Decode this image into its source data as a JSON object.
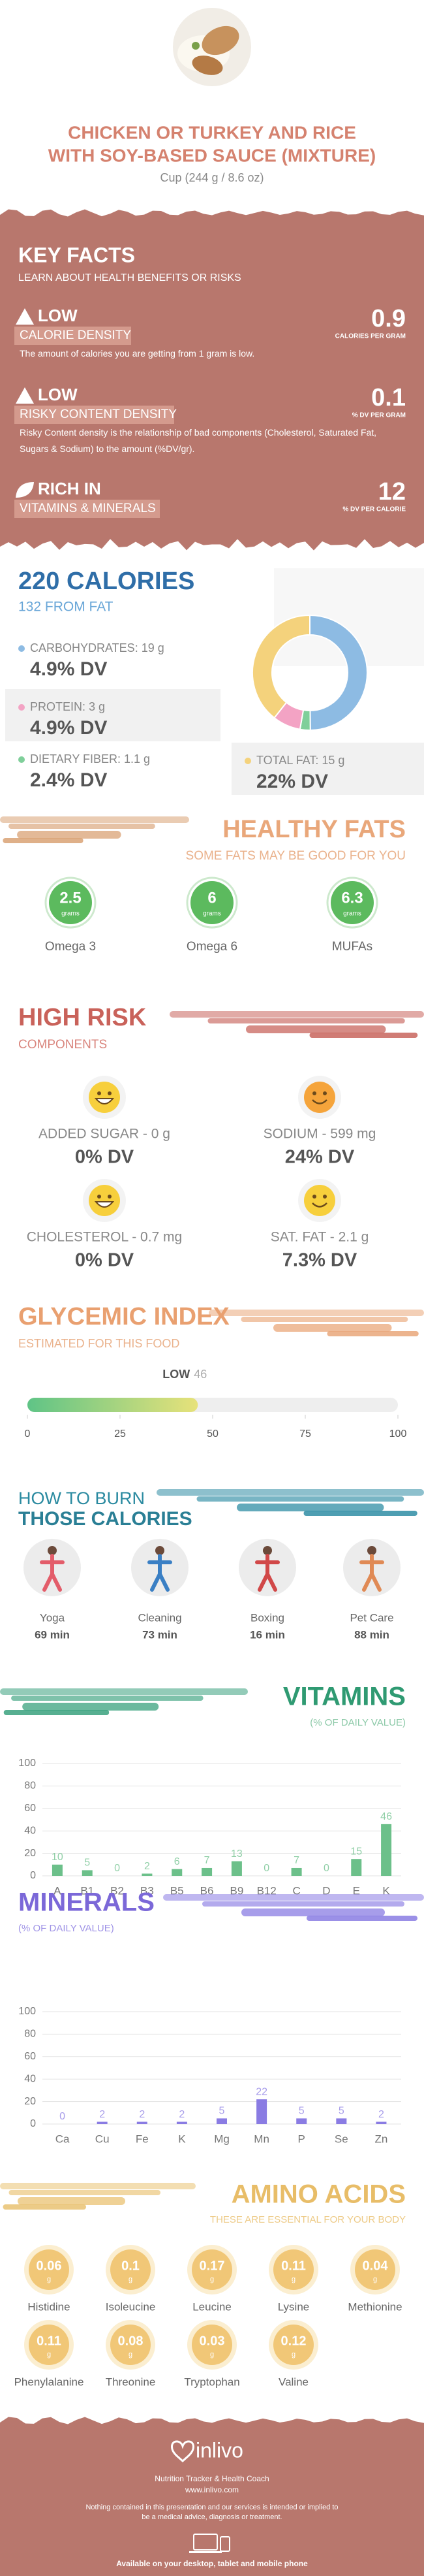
{
  "header": {
    "title_lines": [
      "CHICKEN OR TURKEY AND RICE",
      "WITH SOY-BASED SAUCE (MIXTURE)"
    ],
    "serving": "Cup (244 g / 8.6 oz)"
  },
  "key_facts": {
    "title": "KEY FACTS",
    "subtitle": "LEARN ABOUT HEALTH BENEFITS OR RISKS",
    "items": [
      {
        "level": "LOW",
        "label": "CALORIE DENSITY",
        "value": 0.9,
        "unit": "CALORIES PER GRAM",
        "description": "The amount of calories you are getting from 1 gram is low."
      },
      {
        "level": "LOW",
        "label": "RISKY CONTENT DENSITY",
        "value": 0.1,
        "unit": "% DV PER GRAM",
        "description": "Risky Content density is the relationship of bad components (Cholesterol, Saturated Fat, Sugars & Sodium) to the amount (%DV/gr)."
      },
      {
        "level": "RICH IN",
        "label": "VITAMINS & MINERALS",
        "value": 12,
        "unit": "% DV PER CALORIE"
      }
    ]
  },
  "calories": {
    "title": "220 CALORIES",
    "subtitle": "132 FROM FAT",
    "nutrients": [
      {
        "label": "CARBOHYDRATES: 19 g",
        "grams": 19,
        "dv": "4.9% DV",
        "color": "#8dbbe3"
      },
      {
        "label": "DIETARY FIBER: 1.1 g",
        "grams": 1.1,
        "dv": "2.4% DV",
        "color": "#7fcf9a"
      },
      {
        "label": "PROTEIN: 3 g",
        "grams": 3,
        "dv": "4.9% DV",
        "color": "#f3a3c4"
      },
      {
        "label": "TOTAL FAT: 15 g",
        "grams": 15,
        "dv": "22% DV",
        "color": "#f4d27c"
      }
    ]
  },
  "healthy_fats": {
    "title": "HEALTHY FATS",
    "subtitle": "SOME FATS MAY BE GOOD FOR YOU",
    "items": [
      {
        "value": 2.5,
        "unit": "grams",
        "name": "Omega 3"
      },
      {
        "value": 6,
        "unit": "grams",
        "name": "Omega 6"
      },
      {
        "value": 6.3,
        "unit": "grams",
        "name": "MUFAs"
      }
    ]
  },
  "high_risk": {
    "title": "HIGH RISK",
    "subtitle": "COMPONENTS",
    "items": [
      {
        "label": "ADDED SUGAR - 0 g",
        "dv": "0% DV",
        "color": "#f7cf3c"
      },
      {
        "label": "SODIUM - 599 mg",
        "dv": "24% DV",
        "color": "#f5a43b"
      },
      {
        "label": "CHOLESTEROL - 0.7 mg",
        "dv": "0% DV",
        "color": "#f7cf3c"
      },
      {
        "label": "SAT. FAT - 2.1 g",
        "dv": "7.3% DV",
        "color": "#f7cf3c"
      }
    ]
  },
  "glycemic": {
    "title": "GLYCEMIC INDEX",
    "subtitle": "ESTIMATED FOR THIS FOOD",
    "level": "LOW",
    "value": 46,
    "xlim": [
      0,
      100
    ],
    "xticks": [
      0,
      25,
      50,
      75,
      100
    ]
  },
  "burn": {
    "title_lines": [
      "HOW TO BURN",
      "THOSE CALORIES"
    ],
    "activities": [
      {
        "name": "Yoga",
        "time": "69 min"
      },
      {
        "name": "Cleaning",
        "time": "73 min"
      },
      {
        "name": "Boxing",
        "time": "16 min"
      },
      {
        "name": "Pet Care",
        "time": "88 min"
      }
    ]
  },
  "chart_data": [
    {
      "type": "bar",
      "title": "VITAMINS",
      "subtitle": "(% OF DAILY VALUE)",
      "color": "#6cc08a",
      "categories": [
        "A",
        "B1",
        "B2",
        "B3",
        "B5",
        "B6",
        "B9",
        "B12",
        "C",
        "D",
        "E",
        "K"
      ],
      "values": [
        10,
        5,
        0,
        2,
        6,
        7,
        13,
        0,
        7,
        0,
        15,
        46
      ],
      "ylim": [
        0,
        100
      ],
      "yticks": [
        0,
        20,
        40,
        60,
        80,
        100
      ],
      "grid": true
    },
    {
      "type": "bar",
      "title": "MINERALS",
      "subtitle": "(% OF DAILY VALUE)",
      "color": "#8a7ce3",
      "categories": [
        "Ca",
        "Cu",
        "Fe",
        "K",
        "Mg",
        "Mn",
        "P",
        "Se",
        "Zn"
      ],
      "values": [
        0,
        2,
        2,
        2,
        5,
        22,
        5,
        5,
        2
      ],
      "ylim": [
        0,
        100
      ],
      "yticks": [
        0,
        20,
        40,
        60,
        80,
        100
      ],
      "grid": true
    }
  ],
  "amino_acids": {
    "title": "AMINO ACIDS",
    "subtitle": "THESE ARE ESSENTIAL FOR YOUR BODY",
    "unit": "g",
    "items": [
      {
        "name": "Histidine",
        "value": 0.06
      },
      {
        "name": "Isoleucine",
        "value": 0.1
      },
      {
        "name": "Leucine",
        "value": 0.17
      },
      {
        "name": "Lysine",
        "value": 0.11
      },
      {
        "name": "Methionine",
        "value": 0.04
      },
      {
        "name": "Phenylalanine",
        "value": 0.11
      },
      {
        "name": "Threonine",
        "value": 0.08
      },
      {
        "name": "Tryptophan",
        "value": 0.03
      },
      {
        "name": "Valine",
        "value": 0.12
      }
    ]
  },
  "footer": {
    "brand": "inlivo",
    "tagline": "Nutrition Tracker & Health Coach",
    "url": "www.inlivo.com",
    "disclaimer": "Nothing contained in this presentation and our services is intended or implied to be a medical advice, diagnosis or treatment.",
    "available": "Available on your desktop, tablet and mobile phone"
  }
}
